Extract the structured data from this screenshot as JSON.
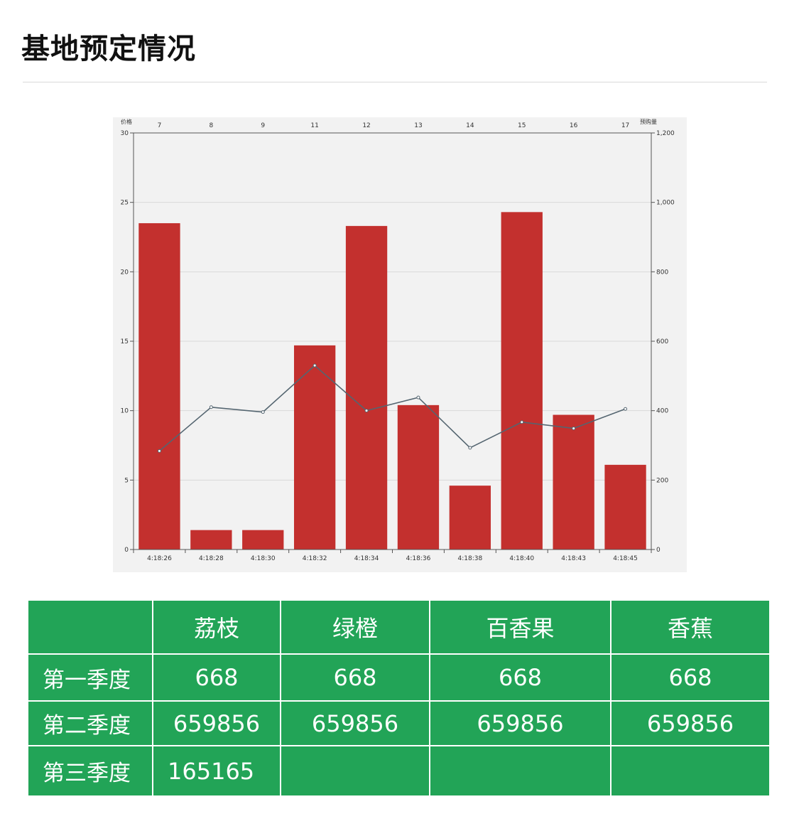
{
  "page": {
    "title": "基地预定情况"
  },
  "colors": {
    "bar": "#c3302e",
    "line": "#546570",
    "table_bg": "#22a457",
    "chart_bg": "#f2f2f2"
  },
  "chart_data": {
    "type": "bar",
    "categories": [
      "4:18:26",
      "4:18:28",
      "4:18:30",
      "4:18:32",
      "4:18:34",
      "4:18:36",
      "4:18:38",
      "4:18:40",
      "4:18:43",
      "4:18:45"
    ],
    "top_categories": [
      "7",
      "8",
      "9",
      "11",
      "12",
      "13",
      "14",
      "15",
      "16",
      "17"
    ],
    "series": [
      {
        "name": "",
        "type": "bar",
        "axis": "left",
        "values": [
          23.5,
          1.4,
          1.4,
          14.7,
          23.3,
          10.4,
          4.6,
          24.3,
          9.7,
          6.1
        ]
      },
      {
        "name": "",
        "type": "line",
        "axis": "right",
        "values": [
          284,
          410,
          396,
          530,
          400,
          438,
          293,
          367,
          349,
          405
        ]
      }
    ],
    "ylabel_left": "价格",
    "ylabel_right": "预购量",
    "ylim_left": [
      0,
      30
    ],
    "ylim_right": [
      0,
      1200
    ],
    "yticks_left": [
      0,
      5,
      10,
      15,
      20,
      25,
      30
    ],
    "yticks_right": [
      0,
      200,
      400,
      600,
      800,
      1000,
      1200
    ],
    "yticks_right_labels": [
      "0",
      "200",
      "400",
      "600",
      "800",
      "1,000",
      "1,200"
    ],
    "grid": true
  },
  "table": {
    "headers": [
      "",
      "荔枝",
      "绿橙",
      "百香果",
      "香蕉"
    ],
    "rows": [
      {
        "label": "第一季度",
        "values": [
          "668",
          "668",
          "668",
          "668"
        ]
      },
      {
        "label": "第二季度",
        "values": [
          "659856",
          "659856",
          "659856",
          "659856"
        ]
      },
      {
        "label": "第三季度",
        "values": [
          "165165",
          "",
          "",
          ""
        ]
      }
    ]
  }
}
